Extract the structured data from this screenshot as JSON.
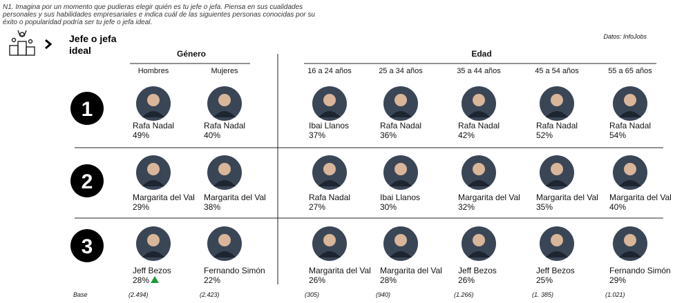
{
  "question": "N1. Imagina por un momento que pudieras elegir quién es tu jefe o jefa. Piensa en sus cualidades personales y sus habilidades empresariales e indica cuál de las siguientes personas conocidas por su éxito o popularidad podría ser tu jefe o jefa ideal.",
  "title": "Jefe o jefa ideal",
  "source": "Datos: InfoJobs",
  "groups": [
    {
      "label": "Género",
      "columns": [
        "Hombres",
        "Mujeres"
      ]
    },
    {
      "label": "Edad",
      "columns": [
        "16 a 24 años",
        "25 a 34 años",
        "35 a 44 años",
        "45 a 54 años",
        "55 a 65 años"
      ]
    }
  ],
  "ranks": [
    "1",
    "2",
    "3"
  ],
  "rows": [
    [
      {
        "name": "Rafa Nadal",
        "pct": "49%"
      },
      {
        "name": "Rafa Nadal",
        "pct": "40%"
      },
      {
        "name": "Ibai Llanos",
        "pct": "37%"
      },
      {
        "name": "Rafa Nadal",
        "pct": "36%"
      },
      {
        "name": "Rafa Nadal",
        "pct": "42%"
      },
      {
        "name": "Rafa Nadal",
        "pct": "52%"
      },
      {
        "name": "Rafa Nadal",
        "pct": "54%"
      }
    ],
    [
      {
        "name": "Margarita del Val",
        "pct": "29%"
      },
      {
        "name": "Margarita del Val",
        "pct": "38%"
      },
      {
        "name": "Rafa Nadal",
        "pct": "27%"
      },
      {
        "name": "Ibai Llanos",
        "pct": "30%"
      },
      {
        "name": "Margarita del Val",
        "pct": "32%"
      },
      {
        "name": "Margarita del Val",
        "pct": "35%"
      },
      {
        "name": "Margarita del Val",
        "pct": "40%"
      }
    ],
    [
      {
        "name": "Jeff Bezos",
        "pct": "28%"
      },
      {
        "name": "Fernando Simón",
        "pct": "22%"
      },
      {
        "name": "Margarita del Val",
        "pct": "26%"
      },
      {
        "name": "Margarita del Val",
        "pct": "28%"
      },
      {
        "name": "Jeff Bezos",
        "pct": "26%"
      },
      {
        "name": "Jeff Bezos",
        "pct": "25%"
      },
      {
        "name": "Fernando Simón",
        "pct": "29%"
      }
    ]
  ],
  "base_label": "Base",
  "bases": [
    "(2.494)",
    "(2.423)",
    "(305)",
    "(940)",
    "(1.266)",
    "(1. 385)",
    "(1.021)"
  ]
}
